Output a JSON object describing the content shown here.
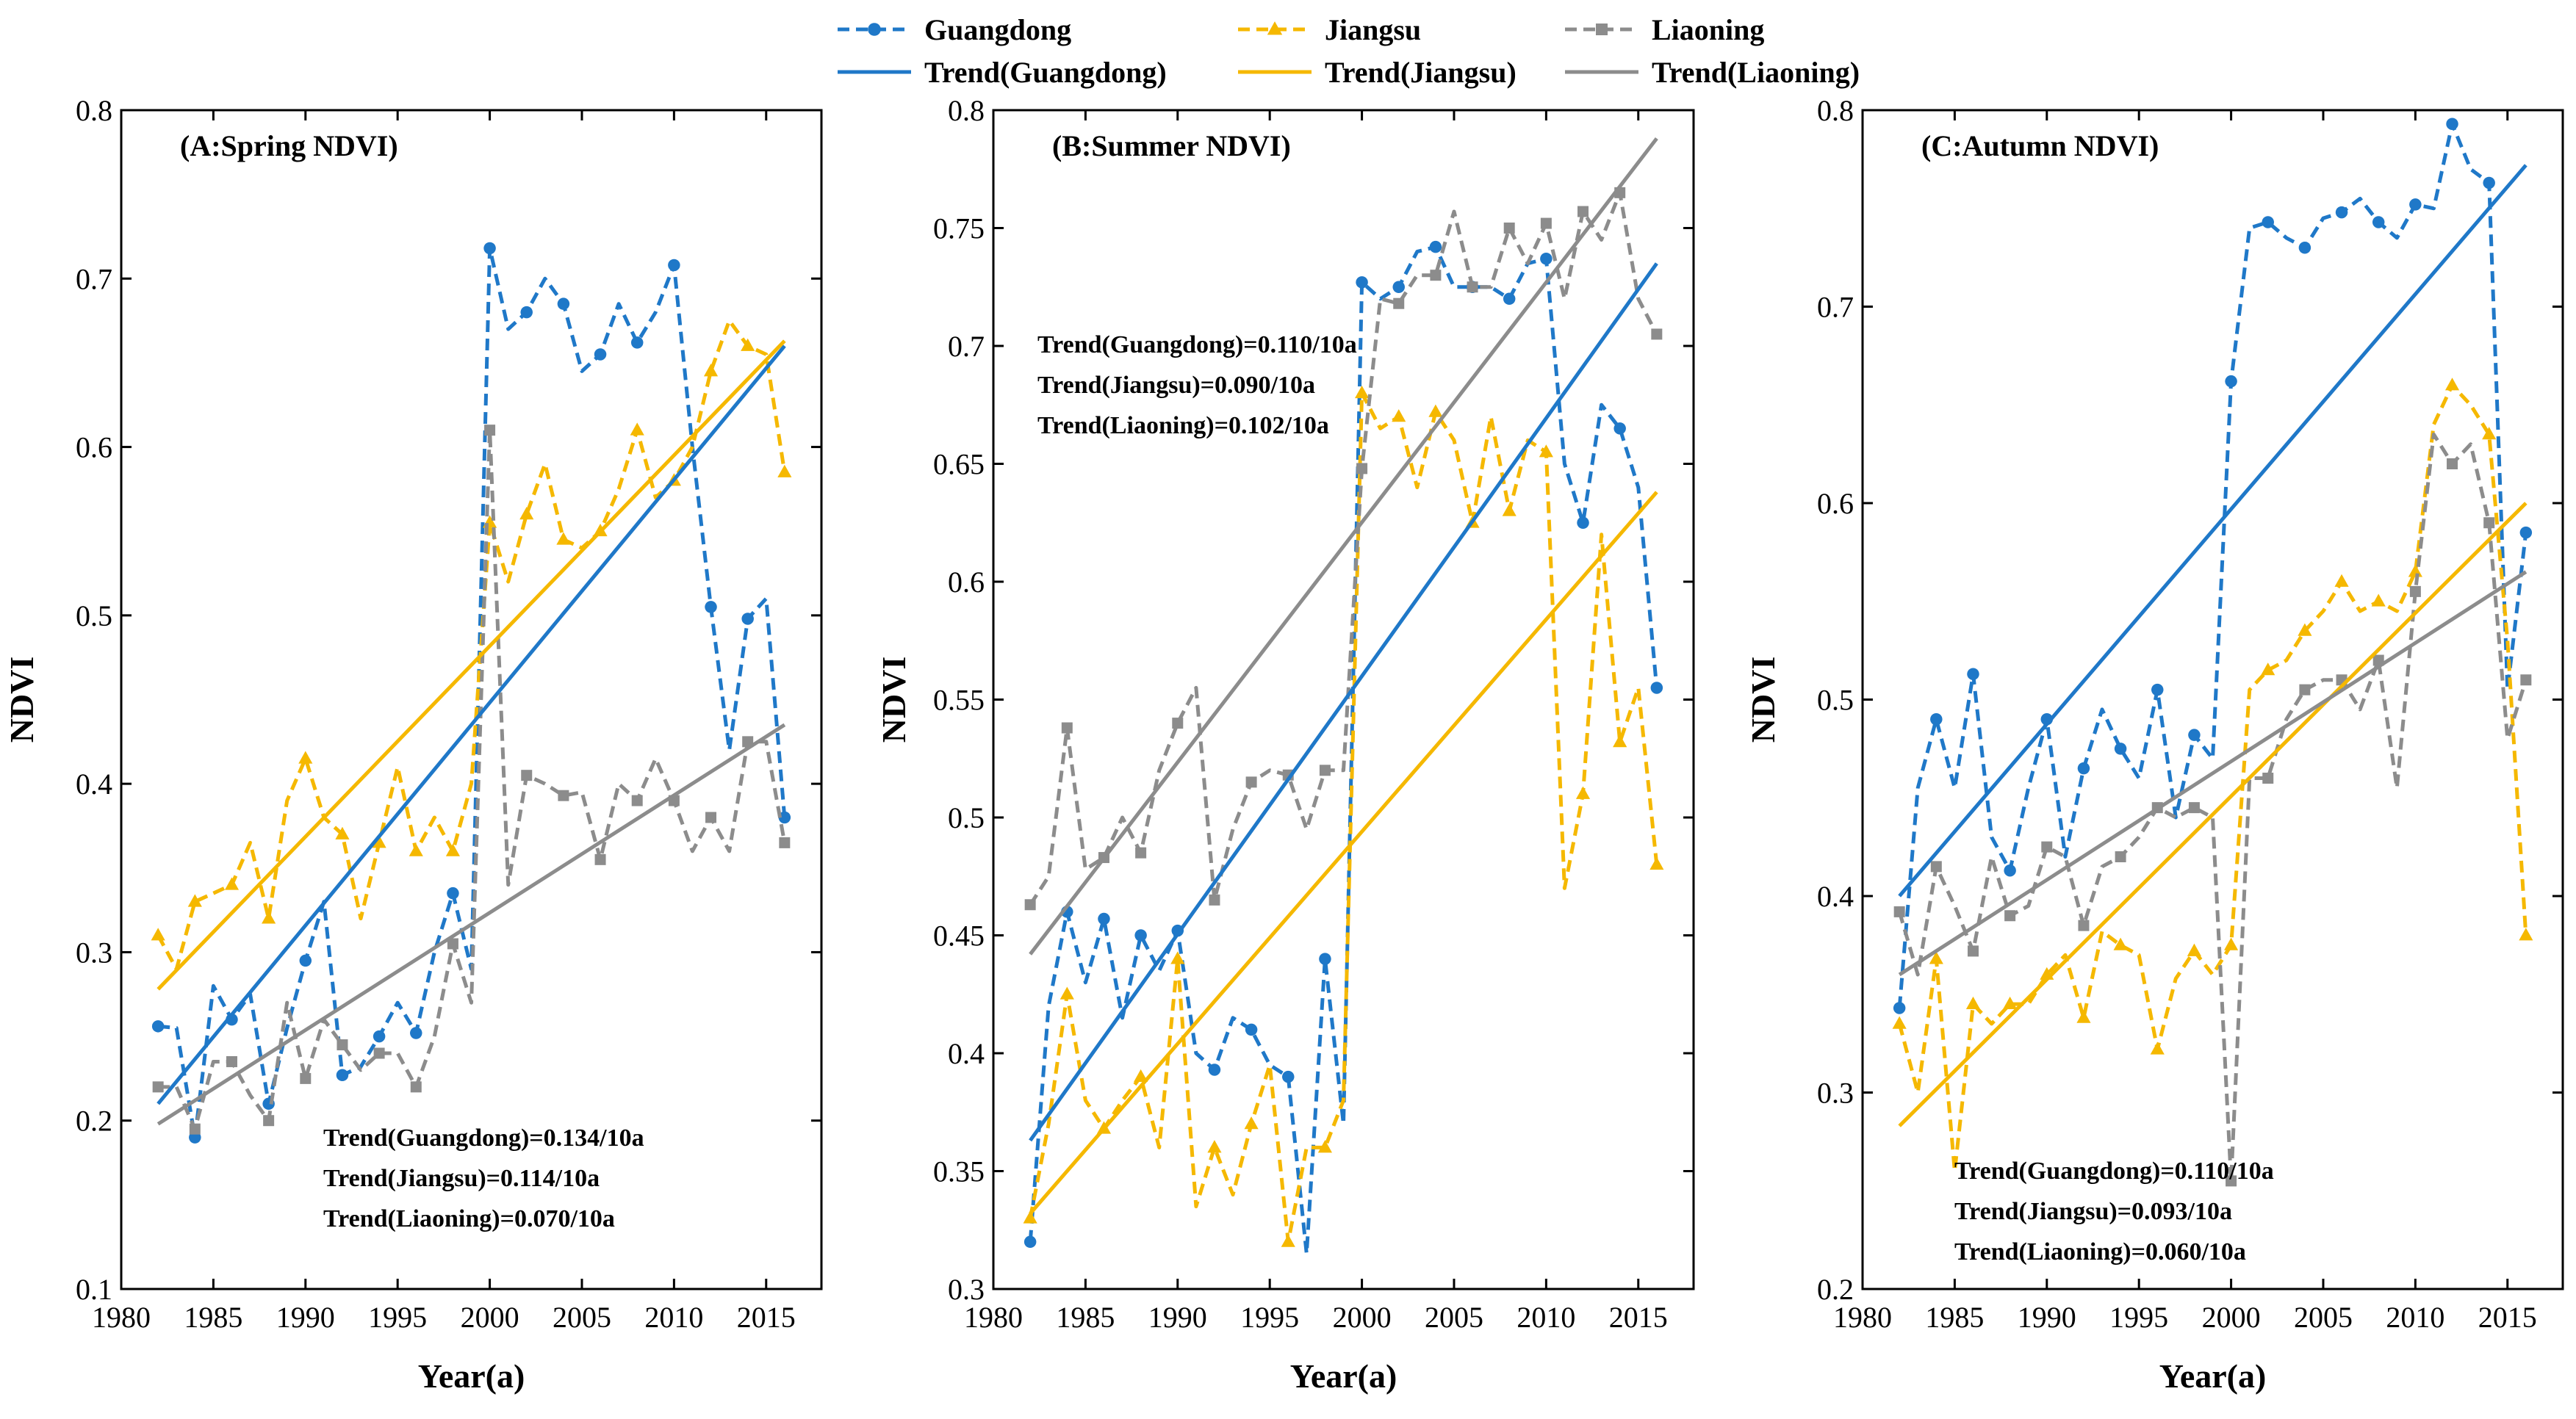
{
  "chart_data": {
    "type": "line",
    "legend": {
      "position": "top-center",
      "entries": [
        {
          "label": "Guangdong",
          "color": "#1f78c8",
          "style": "dashed-marker",
          "marker": "circle"
        },
        {
          "label": "Jiangsu",
          "color": "#f5b800",
          "style": "dashed-marker",
          "marker": "triangle"
        },
        {
          "label": "Liaoning",
          "color": "#8c8c8c",
          "style": "dashed-marker",
          "marker": "square"
        },
        {
          "label": "Trend(Guangdong)",
          "color": "#1f78c8",
          "style": "solid"
        },
        {
          "label": "Trend(Jiangsu)",
          "color": "#f5b800",
          "style": "solid"
        },
        {
          "label": "Trend(Liaoning)",
          "color": "#8c8c8c",
          "style": "solid"
        }
      ]
    },
    "panels": [
      {
        "title": "(A:Spring NDVI)",
        "xlabel": "Year(a)",
        "ylabel": "NDVI",
        "xlim": [
          1980,
          2018
        ],
        "ylim": [
          0.1,
          0.8
        ],
        "xticks": [
          "1980",
          "1985",
          "1990",
          "1995",
          "2000",
          "2005",
          "2010",
          "2015"
        ],
        "yticks": [
          "0.1",
          "0.2",
          "0.3",
          "0.4",
          "0.5",
          "0.6",
          "0.7",
          "0.8"
        ],
        "x": [
          1982,
          1983,
          1984,
          1985,
          1986,
          1987,
          1988,
          1989,
          1990,
          1991,
          1992,
          1993,
          1994,
          1995,
          1996,
          1997,
          1998,
          1999,
          2000,
          2001,
          2002,
          2003,
          2004,
          2005,
          2006,
          2007,
          2008,
          2009,
          2010,
          2011,
          2012,
          2013,
          2014,
          2015,
          2016
        ],
        "series": [
          {
            "name": "Guangdong",
            "values": [
              0.256,
              0.255,
              0.19,
              0.28,
              0.26,
              0.275,
              0.21,
              0.255,
              0.295,
              0.33,
              0.227,
              0.232,
              0.25,
              0.27,
              0.252,
              0.3,
              0.335,
              0.29,
              0.718,
              0.67,
              0.68,
              0.7,
              0.685,
              0.645,
              0.655,
              0.685,
              0.662,
              0.68,
              0.708,
              0.6,
              0.505,
              0.42,
              0.498,
              0.51,
              0.38
            ]
          },
          {
            "name": "Jiangsu",
            "values": [
              0.31,
              0.29,
              0.33,
              0.335,
              0.34,
              0.365,
              0.32,
              0.39,
              0.415,
              0.38,
              0.37,
              0.32,
              0.365,
              0.41,
              0.36,
              0.38,
              0.36,
              0.4,
              0.555,
              0.52,
              0.56,
              0.59,
              0.545,
              0.54,
              0.55,
              0.575,
              0.61,
              0.57,
              0.58,
              0.6,
              0.645,
              0.675,
              0.66,
              0.655,
              0.585
            ]
          },
          {
            "name": "Liaoning",
            "values": [
              0.22,
              0.22,
              0.195,
              0.235,
              0.235,
              0.215,
              0.2,
              0.27,
              0.225,
              0.26,
              0.245,
              0.23,
              0.24,
              0.24,
              0.22,
              0.25,
              0.305,
              0.27,
              0.61,
              0.34,
              0.405,
              0.4,
              0.393,
              0.395,
              0.355,
              0.4,
              0.39,
              0.415,
              0.39,
              0.36,
              0.38,
              0.36,
              0.425,
              0.425,
              0.365
            ]
          }
        ],
        "trends": [
          {
            "name": "Trend(Guangdong)",
            "from": [
              1982,
              0.21
            ],
            "to": [
              2016,
              0.66
            ]
          },
          {
            "name": "Trend(Jiangsu)",
            "from": [
              1982,
              0.278
            ],
            "to": [
              2016,
              0.663
            ]
          },
          {
            "name": "Trend(Liaoning)",
            "from": [
              1982,
              0.198
            ],
            "to": [
              2016,
              0.435
            ]
          }
        ],
        "annotations": [
          "Trend(Guangdong)=0.134/10a",
          "Trend(Jiangsu)=0.114/10a",
          "Trend(Liaoning)=0.070/10a"
        ]
      },
      {
        "title": "(B:Summer NDVI)",
        "xlabel": "Year(a)",
        "ylabel": "NDVI",
        "xlim": [
          1980,
          2018
        ],
        "ylim": [
          0.3,
          0.8
        ],
        "xticks": [
          "1980",
          "1985",
          "1990",
          "1995",
          "2000",
          "2005",
          "2010",
          "2015"
        ],
        "yticks": [
          "0.3",
          "0.35",
          "0.4",
          "0.45",
          "0.5",
          "0.55",
          "0.6",
          "0.65",
          "0.7",
          "0.75",
          "0.8"
        ],
        "x": [
          1982,
          1983,
          1984,
          1985,
          1986,
          1987,
          1988,
          1989,
          1990,
          1991,
          1992,
          1993,
          1994,
          1995,
          1996,
          1997,
          1998,
          1999,
          2000,
          2001,
          2002,
          2003,
          2004,
          2005,
          2006,
          2007,
          2008,
          2009,
          2010,
          2011,
          2012,
          2013,
          2014,
          2015,
          2016
        ],
        "series": [
          {
            "name": "Guangdong",
            "values": [
              0.32,
              0.42,
              0.46,
              0.43,
              0.457,
              0.415,
              0.45,
              0.435,
              0.452,
              0.4,
              0.393,
              0.415,
              0.41,
              0.395,
              0.39,
              0.315,
              0.44,
              0.37,
              0.727,
              0.72,
              0.725,
              0.74,
              0.742,
              0.725,
              0.725,
              0.725,
              0.72,
              0.735,
              0.737,
              0.65,
              0.625,
              0.675,
              0.665,
              0.64,
              0.555
            ]
          },
          {
            "name": "Jiangsu",
            "values": [
              0.33,
              0.37,
              0.425,
              0.38,
              0.368,
              0.38,
              0.39,
              0.36,
              0.44,
              0.335,
              0.36,
              0.34,
              0.37,
              0.395,
              0.32,
              0.36,
              0.36,
              0.38,
              0.68,
              0.665,
              0.67,
              0.64,
              0.672,
              0.66,
              0.625,
              0.67,
              0.63,
              0.66,
              0.655,
              0.47,
              0.51,
              0.62,
              0.532,
              0.555,
              0.48
            ]
          },
          {
            "name": "Liaoning",
            "values": [
              0.463,
              0.475,
              0.538,
              0.478,
              0.483,
              0.5,
              0.485,
              0.52,
              0.54,
              0.555,
              0.465,
              0.495,
              0.515,
              0.52,
              0.518,
              0.495,
              0.52,
              0.52,
              0.648,
              0.72,
              0.718,
              0.73,
              0.73,
              0.757,
              0.725,
              0.725,
              0.75,
              0.735,
              0.752,
              0.72,
              0.757,
              0.745,
              0.765,
              0.72,
              0.705
            ]
          }
        ],
        "trends": [
          {
            "name": "Trend(Guangdong)",
            "from": [
              1982,
              0.363
            ],
            "to": [
              2016,
              0.735
            ]
          },
          {
            "name": "Trend(Jiangsu)",
            "from": [
              1982,
              0.332
            ],
            "to": [
              2016,
              0.638
            ]
          },
          {
            "name": "Trend(Liaoning)",
            "from": [
              1982,
              0.442
            ],
            "to": [
              2016,
              0.788
            ]
          }
        ],
        "annotations": [
          "Trend(Guangdong)=0.110/10a",
          "Trend(Jiangsu)=0.090/10a",
          "Trend(Liaoning)=0.102/10a"
        ]
      },
      {
        "title": "(C:Autumn NDVI)",
        "xlabel": "Year(a)",
        "ylabel": "NDVI",
        "xlim": [
          1980,
          2018
        ],
        "ylim": [
          0.2,
          0.8
        ],
        "xticks": [
          "1980",
          "1985",
          "1990",
          "1995",
          "2000",
          "2005",
          "2010",
          "2015"
        ],
        "yticks": [
          "0.2",
          "0.3",
          "0.4",
          "0.5",
          "0.6",
          "0.7",
          "0.8"
        ],
        "x": [
          1982,
          1983,
          1984,
          1985,
          1986,
          1987,
          1988,
          1989,
          1990,
          1991,
          1992,
          1993,
          1994,
          1995,
          1996,
          1997,
          1998,
          1999,
          2000,
          2001,
          2002,
          2003,
          2004,
          2005,
          2006,
          2007,
          2008,
          2009,
          2010,
          2011,
          2012,
          2013,
          2014,
          2015,
          2016
        ],
        "series": [
          {
            "name": "Guangdong",
            "values": [
              0.343,
              0.455,
              0.49,
              0.455,
              0.513,
              0.43,
              0.413,
              0.455,
              0.49,
              0.42,
              0.465,
              0.495,
              0.475,
              0.46,
              0.505,
              0.44,
              0.482,
              0.47,
              0.662,
              0.74,
              0.743,
              0.735,
              0.73,
              0.745,
              0.748,
              0.755,
              0.743,
              0.735,
              0.752,
              0.75,
              0.793,
              0.77,
              0.763,
              0.505,
              0.585
            ]
          },
          {
            "name": "Jiangsu",
            "values": [
              0.335,
              0.3,
              0.368,
              0.26,
              0.345,
              0.335,
              0.345,
              0.345,
              0.36,
              0.37,
              0.338,
              0.382,
              0.375,
              0.37,
              0.322,
              0.358,
              0.372,
              0.36,
              0.375,
              0.505,
              0.515,
              0.52,
              0.535,
              0.545,
              0.56,
              0.545,
              0.55,
              0.545,
              0.565,
              0.64,
              0.66,
              0.65,
              0.635,
              0.53,
              0.38
            ]
          },
          {
            "name": "Liaoning",
            "values": [
              0.392,
              0.36,
              0.415,
              0.395,
              0.372,
              0.42,
              0.39,
              0.395,
              0.425,
              0.42,
              0.385,
              0.415,
              0.42,
              0.43,
              0.445,
              0.44,
              0.445,
              0.44,
              0.255,
              0.46,
              0.46,
              0.49,
              0.505,
              0.51,
              0.51,
              0.495,
              0.52,
              0.455,
              0.555,
              0.635,
              0.62,
              0.63,
              0.59,
              0.48,
              0.51
            ]
          }
        ],
        "trends": [
          {
            "name": "Trend(Guangdong)",
            "from": [
              1982,
              0.4
            ],
            "to": [
              2016,
              0.772
            ]
          },
          {
            "name": "Trend(Jiangsu)",
            "from": [
              1982,
              0.283
            ],
            "to": [
              2016,
              0.6
            ]
          },
          {
            "name": "Trend(Liaoning)",
            "from": [
              1982,
              0.36
            ],
            "to": [
              2016,
              0.565
            ]
          }
        ],
        "annotations": [
          "Trend(Guangdong)=0.110/10a",
          "Trend(Jiangsu)=0.093/10a",
          "Trend(Liaoning)=0.060/10a"
        ]
      }
    ]
  }
}
